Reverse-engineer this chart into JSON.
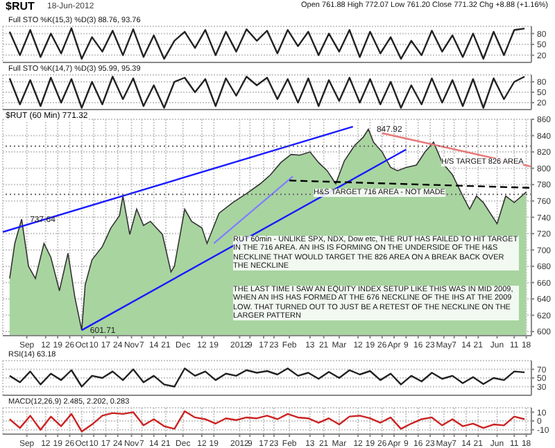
{
  "chart_data": [
    {
      "type": "line",
      "title": "$RUT",
      "subtitle": "18-Jun-2012",
      "annotations": [
        "Open 761.88 High 772.07 Low 761.20 Close 771.32 Chg +8.88 (+1.16%)",
        "Full STO %K(15,3) %D(3) 88.76, 93.76"
      ],
      "x": [
        "2011-08-22",
        "2011-08-28",
        "2011-09-03",
        "2011-09-09",
        "2011-09-15",
        "2011-09-21",
        "2011-09-27",
        "2011-10-03",
        "2011-10-09",
        "2011-10-15",
        "2011-10-21",
        "2011-10-27",
        "2011-11-02",
        "2011-11-08",
        "2011-11-14",
        "2011-11-20",
        "2011-11-26",
        "2011-12-02",
        "2011-12-08",
        "2011-12-14",
        "2011-12-20",
        "2011-12-26",
        "2012-01-01",
        "2012-01-07",
        "2012-01-13",
        "2012-01-19",
        "2012-01-25",
        "2012-01-31",
        "2012-02-06",
        "2012-02-12",
        "2012-02-18",
        "2012-02-24",
        "2012-03-01",
        "2012-03-07",
        "2012-03-13",
        "2012-03-19",
        "2012-03-25",
        "2012-03-31",
        "2012-04-06",
        "2012-04-12",
        "2012-04-18",
        "2012-04-24",
        "2012-04-30",
        "2012-05-06",
        "2012-05-12",
        "2012-05-18",
        "2012-05-24",
        "2012-05-30",
        "2012-06-05",
        "2012-06-11",
        "2012-06-17"
      ],
      "series": [
        {
          "color": "#222222",
          "values": [
            85,
            20,
            90,
            15,
            80,
            25,
            95,
            10,
            70,
            30,
            88,
            20,
            92,
            15,
            75,
            10,
            60,
            85,
            40,
            90,
            20,
            85,
            30,
            92,
            60,
            88,
            25,
            90,
            45,
            85,
            20,
            80,
            30,
            90,
            15,
            85,
            25,
            70,
            10,
            60,
            20,
            88,
            30,
            75,
            15,
            80,
            10,
            85,
            20,
            90,
            94
          ]
        }
      ],
      "xlim": [
        "2011-08-18",
        "2012-06-21"
      ],
      "ylim": [
        0,
        100
      ],
      "yticks": [
        20,
        50,
        80
      ],
      "xticks": [
        {
          "value": "2011-09-01",
          "label": null
        },
        {
          "value": "2011-10-03",
          "label": null
        },
        {
          "value": "2011-11-01",
          "label": null
        },
        {
          "value": "2011-12-01",
          "label": null
        },
        {
          "value": "2012-01-03",
          "label": null
        },
        {
          "value": "2012-02-01",
          "label": null
        },
        {
          "value": "2012-03-01",
          "label": null
        },
        {
          "value": "2012-04-02",
          "label": null
        },
        {
          "value": "2012-05-01",
          "label": null
        },
        {
          "value": "2012-06-01",
          "label": null
        }
      ],
      "grid": true,
      "tick_labels": "y"
    },
    {
      "type": "line",
      "annotations": [
        "Full STO %K(14,7) %D(3) 95.99, 95.39"
      ],
      "x": [
        "2011-08-22",
        "2011-08-28",
        "2011-09-03",
        "2011-09-09",
        "2011-09-15",
        "2011-09-21",
        "2011-09-27",
        "2011-10-03",
        "2011-10-09",
        "2011-10-15",
        "2011-10-21",
        "2011-10-27",
        "2011-11-02",
        "2011-11-08",
        "2011-11-14",
        "2011-11-20",
        "2011-11-26",
        "2011-12-02",
        "2011-12-08",
        "2011-12-14",
        "2011-12-20",
        "2011-12-26",
        "2012-01-01",
        "2012-01-07",
        "2012-01-13",
        "2012-01-19",
        "2012-01-25",
        "2012-01-31",
        "2012-02-06",
        "2012-02-12",
        "2012-02-18",
        "2012-02-24",
        "2012-03-01",
        "2012-03-07",
        "2012-03-13",
        "2012-03-19",
        "2012-03-25",
        "2012-03-31",
        "2012-04-06",
        "2012-04-12",
        "2012-04-18",
        "2012-04-24",
        "2012-04-30",
        "2012-05-06",
        "2012-05-12",
        "2012-05-18",
        "2012-05-24",
        "2012-05-30",
        "2012-06-05",
        "2012-06-11",
        "2012-06-17"
      ],
      "series": [
        {
          "color": "#222222",
          "values": [
            90,
            15,
            85,
            10,
            92,
            20,
            88,
            5,
            80,
            15,
            95,
            30,
            90,
            10,
            70,
            5,
            80,
            92,
            50,
            88,
            10,
            90,
            40,
            95,
            70,
            92,
            30,
            88,
            20,
            90,
            10,
            85,
            25,
            92,
            20,
            88,
            15,
            80,
            5,
            70,
            15,
            90,
            20,
            85,
            10,
            88,
            5,
            90,
            30,
            80,
            95
          ]
        }
      ],
      "xlim": [
        "2011-08-18",
        "2012-06-21"
      ],
      "ylim": [
        0,
        100
      ],
      "yticks": [
        20,
        50,
        80
      ],
      "xticks": [
        {
          "value": "2011-09-01",
          "label": null
        },
        {
          "value": "2011-10-03",
          "label": null
        },
        {
          "value": "2011-11-01",
          "label": null
        },
        {
          "value": "2011-12-01",
          "label": null
        },
        {
          "value": "2012-01-03",
          "label": null
        },
        {
          "value": "2012-02-01",
          "label": null
        },
        {
          "value": "2012-03-01",
          "label": null
        },
        {
          "value": "2012-04-02",
          "label": null
        },
        {
          "value": "2012-05-01",
          "label": null
        },
        {
          "value": "2012-06-01",
          "label": null
        }
      ],
      "grid": true,
      "tick_labels": "y"
    },
    {
      "type": "area",
      "title": "$RUT (60 Min) 771.32",
      "annotations": [
        "H&S TARGET 716 AREA - NOT MADE",
        "H/S TARGET 826 AREA",
        "RUT 60min - UNLIKE SPX, NDX, Dow etc, THE RUT HAS FAILED TO HIT TARGET IN THE 716 AREA. AN IHS IS FORMING ON THE UNDERSIDE OF THE H&S NECKLINE THAT WOULD TARGET THE 826 AREA ON A BREAK BACK OVER THE NECKLINE",
        "THE LAST TIME I SAW AN EQUITY INDEX SETUP LIKE THIS WAS IN MID 2009, WHEN AN IHS HAS FORMED AT THE 676 NECKLINE OF THE IHS AT THE 2009 LOW. THAT TURNED OUT TO JUST BE A RETEST OF THE NECKLINE ON THE LARGER PATTERN",
        {
          "text": "737.64",
          "x": "2011-08-29",
          "y": 737.64
        },
        {
          "text": "601.71",
          "x": "2011-10-03",
          "y": 601.71
        },
        {
          "text": "847.92",
          "x": "2012-03-18",
          "y": 847.92
        }
      ],
      "series": [
        {
          "color": "#a8d4a0",
          "x": [
            "2011-08-22",
            "2011-08-25",
            "2011-08-29",
            "2011-09-02",
            "2011-09-06",
            "2011-09-11",
            "2011-09-15",
            "2011-09-20",
            "2011-09-25",
            "2011-09-29",
            "2011-10-03",
            "2011-10-05",
            "2011-10-09",
            "2011-10-15",
            "2011-10-20",
            "2011-10-25",
            "2011-10-27",
            "2011-10-31",
            "2011-11-04",
            "2011-11-08",
            "2011-11-12",
            "2011-11-19",
            "2011-11-24",
            "2011-11-26",
            "2011-12-02",
            "2011-12-06",
            "2011-12-12",
            "2011-12-15",
            "2011-12-22",
            "2011-12-30",
            "2012-01-07",
            "2012-01-15",
            "2012-01-21",
            "2012-01-27",
            "2012-02-02",
            "2012-02-07",
            "2012-02-13",
            "2012-02-18",
            "2012-02-23",
            "2012-02-28",
            "2012-03-04",
            "2012-03-10",
            "2012-03-15",
            "2012-03-18",
            "2012-03-21",
            "2012-03-26",
            "2012-03-31",
            "2012-04-04",
            "2012-04-09",
            "2012-04-15",
            "2012-04-20",
            "2012-04-25",
            "2012-04-30",
            "2012-05-06",
            "2012-05-12",
            "2012-05-16",
            "2012-05-20",
            "2012-05-24",
            "2012-06-01",
            "2012-06-06",
            "2012-06-11",
            "2012-06-18"
          ],
          "values": [
            665,
            708,
            737.64,
            680,
            665,
            708,
            691,
            650,
            696,
            642,
            601.71,
            657,
            688,
            704,
            727,
            742,
            766,
            719,
            750,
            730,
            735,
            719,
            673,
            680,
            750,
            735,
            727,
            708,
            745,
            758,
            769,
            781,
            792,
            807,
            817,
            816,
            820,
            807,
            797,
            781,
            809,
            828,
            838,
            847.92,
            832,
            820,
            801,
            797,
            801,
            804,
            820,
            832,
            807,
            792,
            766,
            750,
            766,
            758,
            732,
            766,
            758,
            771
          ]
        },
        {
          "type": "line",
          "color": "#1a1aff",
          "x": [
            "2011-08-18",
            "2012-03-09"
          ],
          "values": [
            722,
            851
          ]
        },
        {
          "type": "line",
          "color": "#1a1aff",
          "x": [
            "2011-10-03",
            "2012-04-09"
          ],
          "values": [
            601.71,
            823
          ]
        },
        {
          "type": "line",
          "color": "#8080ff",
          "x": [
            "2011-12-19",
            "2012-02-03"
          ],
          "values": [
            708,
            790
          ]
        },
        {
          "type": "line",
          "color": "#e87878",
          "x": [
            "2012-03-26",
            "2012-06-21"
          ],
          "values": [
            843,
            802
          ]
        },
        {
          "type": "line",
          "color": "#000000",
          "line_style": "dashed",
          "x": [
            "2012-02-01",
            "2012-06-21"
          ],
          "values": [
            785,
            776
          ]
        }
      ],
      "ref_lines": [
        {
          "axis": "y",
          "value": 827,
          "color": "#666666",
          "line_style": "dotted"
        },
        {
          "axis": "y",
          "value": 768,
          "color": "#666666",
          "line_style": "dotted"
        }
      ],
      "xlim": [
        "2011-08-18",
        "2012-06-21"
      ],
      "ylim": [
        595,
        860
      ],
      "yticks": [
        600,
        620,
        640,
        660,
        680,
        700,
        720,
        740,
        760,
        780,
        800,
        820,
        840,
        860
      ],
      "xticks": [
        {
          "value": "2011-09-01",
          "label": "Sep"
        },
        {
          "value": "2011-09-12",
          "label": "12"
        },
        {
          "value": "2011-09-19",
          "label": "19"
        },
        {
          "value": "2011-09-26",
          "label": "26"
        },
        {
          "value": "2011-10-03",
          "label": "Oct"
        },
        {
          "value": "2011-10-10",
          "label": "10"
        },
        {
          "value": "2011-10-17",
          "label": "17"
        },
        {
          "value": "2011-10-24",
          "label": "24"
        },
        {
          "value": "2011-11-01",
          "label": "Nov"
        },
        {
          "value": "2011-11-07",
          "label": "7"
        },
        {
          "value": "2011-11-14",
          "label": "14"
        },
        {
          "value": "2011-11-21",
          "label": "21"
        },
        {
          "value": "2011-12-01",
          "label": "Dec"
        },
        {
          "value": "2011-12-12",
          "label": "12"
        },
        {
          "value": "2011-12-19",
          "label": "19"
        },
        {
          "value": "2012-01-03",
          "label": "2012"
        },
        {
          "value": "2012-01-09",
          "label": "9"
        },
        {
          "value": "2012-01-17",
          "label": "17"
        },
        {
          "value": "2012-01-23",
          "label": "23"
        },
        {
          "value": "2012-02-01",
          "label": "Feb"
        },
        {
          "value": "2012-02-13",
          "label": "13"
        },
        {
          "value": "2012-02-21",
          "label": "21"
        },
        {
          "value": "2012-03-01",
          "label": "Mar"
        },
        {
          "value": "2012-03-12",
          "label": "12"
        },
        {
          "value": "2012-03-19",
          "label": "19"
        },
        {
          "value": "2012-03-26",
          "label": "26"
        },
        {
          "value": "2012-04-02",
          "label": "Apr"
        },
        {
          "value": "2012-04-09",
          "label": "9"
        },
        {
          "value": "2012-04-16",
          "label": "16"
        },
        {
          "value": "2012-04-23",
          "label": "23"
        },
        {
          "value": "2012-05-01",
          "label": "May"
        },
        {
          "value": "2012-05-07",
          "label": "7"
        },
        {
          "value": "2012-05-14",
          "label": "14"
        },
        {
          "value": "2012-05-21",
          "label": "21"
        },
        {
          "value": "2012-06-01",
          "label": "Jun"
        },
        {
          "value": "2012-06-11",
          "label": "11"
        },
        {
          "value": "2012-06-18",
          "label": "18"
        }
      ],
      "grid": true
    },
    {
      "type": "line",
      "annotations": [
        "RSI(14) 63.18"
      ],
      "x": [
        "2011-08-22",
        "2011-08-28",
        "2011-09-03",
        "2011-09-09",
        "2011-09-15",
        "2011-09-21",
        "2011-09-27",
        "2011-10-03",
        "2011-10-09",
        "2011-10-15",
        "2011-10-21",
        "2011-10-27",
        "2011-11-02",
        "2011-11-08",
        "2011-11-14",
        "2011-11-20",
        "2011-11-26",
        "2011-12-02",
        "2011-12-08",
        "2011-12-14",
        "2011-12-20",
        "2011-12-26",
        "2012-01-01",
        "2012-01-07",
        "2012-01-13",
        "2012-01-19",
        "2012-01-25",
        "2012-01-31",
        "2012-02-06",
        "2012-02-12",
        "2012-02-18",
        "2012-02-24",
        "2012-03-01",
        "2012-03-07",
        "2012-03-13",
        "2012-03-19",
        "2012-03-25",
        "2012-03-31",
        "2012-04-06",
        "2012-04-12",
        "2012-04-18",
        "2012-04-24",
        "2012-04-30",
        "2012-05-06",
        "2012-05-12",
        "2012-05-18",
        "2012-05-24",
        "2012-05-30",
        "2012-06-05",
        "2012-06-11",
        "2012-06-17"
      ],
      "series": [
        {
          "color": "#222222",
          "values": [
            55,
            40,
            65,
            35,
            60,
            45,
            68,
            30,
            55,
            50,
            65,
            45,
            70,
            40,
            55,
            35,
            30,
            72,
            55,
            65,
            45,
            60,
            55,
            68,
            62,
            66,
            58,
            72,
            55,
            62,
            48,
            64,
            50,
            68,
            58,
            66,
            45,
            60,
            35,
            55,
            42,
            62,
            48,
            55,
            38,
            52,
            36,
            50,
            45,
            65,
            63
          ]
        }
      ],
      "xlim": [
        "2011-08-18",
        "2012-06-21"
      ],
      "ylim": [
        10,
        90
      ],
      "yticks": [
        30,
        50,
        70
      ],
      "xticks": [
        {
          "value": "2011-09-01",
          "label": null
        },
        {
          "value": "2011-10-03",
          "label": null
        },
        {
          "value": "2011-11-01",
          "label": null
        },
        {
          "value": "2011-12-01",
          "label": null
        },
        {
          "value": "2012-01-03",
          "label": null
        },
        {
          "value": "2012-02-01",
          "label": null
        },
        {
          "value": "2012-03-01",
          "label": null
        },
        {
          "value": "2012-04-02",
          "label": null
        },
        {
          "value": "2012-05-01",
          "label": null
        },
        {
          "value": "2012-06-01",
          "label": null
        }
      ],
      "grid": true,
      "tick_labels": "y"
    },
    {
      "type": "line",
      "annotations": [
        "MACD(12,26,9) 2.485, 2.202, 0.283"
      ],
      "x": [
        "2011-08-22",
        "2011-08-28",
        "2011-09-03",
        "2011-09-09",
        "2011-09-15",
        "2011-09-21",
        "2011-09-27",
        "2011-10-03",
        "2011-10-09",
        "2011-10-15",
        "2011-10-21",
        "2011-10-27",
        "2011-11-02",
        "2011-11-08",
        "2011-11-14",
        "2011-11-20",
        "2011-11-26",
        "2011-12-02",
        "2011-12-08",
        "2011-12-14",
        "2011-12-20",
        "2011-12-26",
        "2012-01-01",
        "2012-01-07",
        "2012-01-13",
        "2012-01-19",
        "2012-01-25",
        "2012-01-31",
        "2012-02-06",
        "2012-02-12",
        "2012-02-18",
        "2012-02-24",
        "2012-03-01",
        "2012-03-07",
        "2012-03-13",
        "2012-03-19",
        "2012-03-25",
        "2012-03-31",
        "2012-04-06",
        "2012-04-12",
        "2012-04-18",
        "2012-04-24",
        "2012-04-30",
        "2012-05-06",
        "2012-05-12",
        "2012-05-18",
        "2012-05-24",
        "2012-05-30",
        "2012-06-05",
        "2012-06-11",
        "2012-06-17"
      ],
      "series": [
        {
          "color": "#cc2222",
          "values": [
            2,
            -8,
            6,
            -10,
            5,
            -6,
            8,
            -12,
            -4,
            6,
            9,
            8,
            10,
            -5,
            2,
            -6,
            -9,
            11,
            4,
            2,
            -3,
            3,
            1,
            4,
            3,
            6,
            2,
            8,
            4,
            3,
            -2,
            3,
            -4,
            5,
            6,
            3,
            -2,
            4,
            -9,
            -3,
            2,
            4,
            -5,
            2,
            -6,
            -3,
            -8,
            -4,
            -5,
            5,
            2
          ]
        }
      ],
      "xlim": [
        "2011-08-18",
        "2012-06-21"
      ],
      "ylim": [
        -15,
        15
      ],
      "yticks": [
        -10,
        0,
        10
      ],
      "xticks": [
        {
          "value": "2011-09-01",
          "label": "Sep"
        },
        {
          "value": "2011-09-12",
          "label": "12"
        },
        {
          "value": "2011-09-19",
          "label": "19"
        },
        {
          "value": "2011-09-26",
          "label": "26"
        },
        {
          "value": "2011-10-03",
          "label": "Oct"
        },
        {
          "value": "2011-10-10",
          "label": "10"
        },
        {
          "value": "2011-10-17",
          "label": "17"
        },
        {
          "value": "2011-10-24",
          "label": "24"
        },
        {
          "value": "2011-11-01",
          "label": "Nov"
        },
        {
          "value": "2011-11-07",
          "label": "7"
        },
        {
          "value": "2011-11-14",
          "label": "14"
        },
        {
          "value": "2011-11-21",
          "label": "21"
        },
        {
          "value": "2011-12-01",
          "label": "Dec"
        },
        {
          "value": "2011-12-12",
          "label": "12"
        },
        {
          "value": "2011-12-19",
          "label": "19"
        },
        {
          "value": "2012-01-03",
          "label": "2012"
        },
        {
          "value": "2012-01-09",
          "label": "9"
        },
        {
          "value": "2012-01-17",
          "label": "17"
        },
        {
          "value": "2012-01-23",
          "label": "23"
        },
        {
          "value": "2012-02-01",
          "label": "Feb"
        },
        {
          "value": "2012-02-13",
          "label": "13"
        },
        {
          "value": "2012-02-21",
          "label": "21"
        },
        {
          "value": "2012-03-01",
          "label": "Mar"
        },
        {
          "value": "2012-03-12",
          "label": "12"
        },
        {
          "value": "2012-03-19",
          "label": "19"
        },
        {
          "value": "2012-03-26",
          "label": "26"
        },
        {
          "value": "2012-04-02",
          "label": "Apr"
        },
        {
          "value": "2012-04-09",
          "label": "9"
        },
        {
          "value": "2012-04-16",
          "label": "16"
        },
        {
          "value": "2012-04-23",
          "label": "23"
        },
        {
          "value": "2012-05-01",
          "label": "May"
        },
        {
          "value": "2012-05-07",
          "label": "7"
        },
        {
          "value": "2012-05-14",
          "label": "14"
        },
        {
          "value": "2012-05-21",
          "label": "21"
        },
        {
          "value": "2012-06-01",
          "label": "Jun"
        },
        {
          "value": "2012-06-11",
          "label": "11"
        },
        {
          "value": "2012-06-18",
          "label": "18"
        }
      ],
      "grid": true
    }
  ]
}
